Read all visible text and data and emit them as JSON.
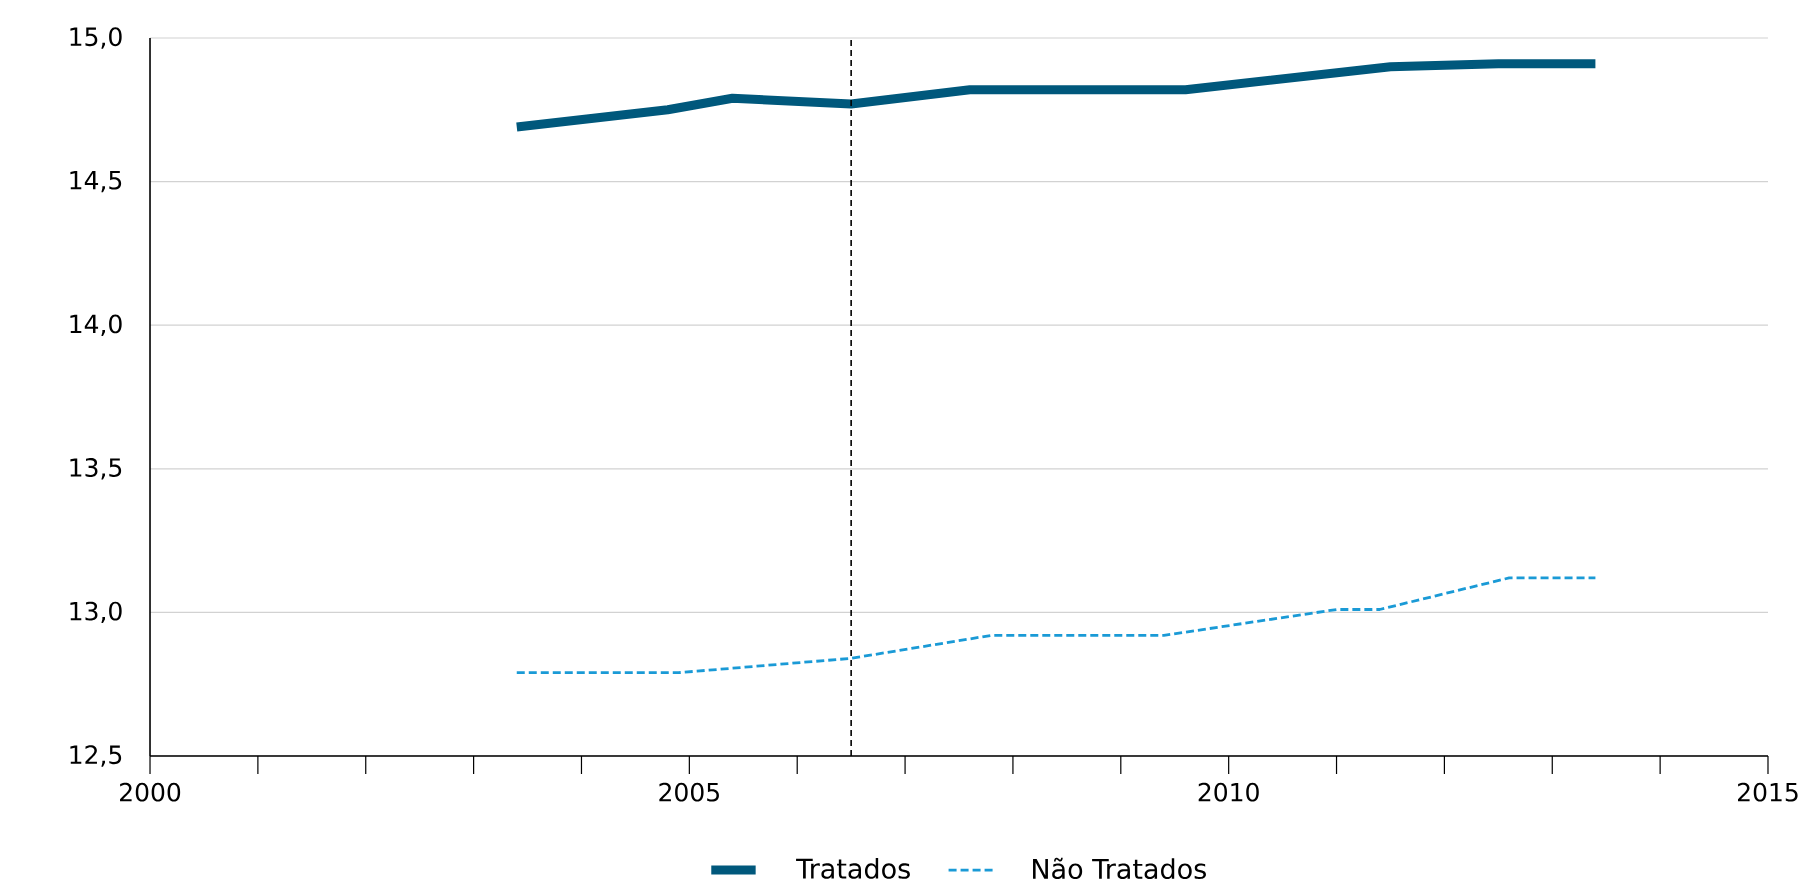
{
  "chart_data": {
    "type": "line",
    "xlim": [
      2000,
      2015
    ],
    "ylim": [
      12.5,
      15
    ],
    "xticks": [
      2000,
      {
        "value": 2001,
        "label": null
      },
      {
        "value": 2002,
        "label": null
      },
      {
        "value": 2003,
        "label": null
      },
      {
        "value": 2004,
        "label": null
      },
      2005,
      {
        "value": 2006,
        "label": null
      },
      {
        "value": 2007,
        "label": null
      },
      {
        "value": 2008,
        "label": null
      },
      {
        "value": 2009,
        "label": null
      },
      2010,
      {
        "value": 2011,
        "label": null
      },
      {
        "value": 2012,
        "label": null
      },
      {
        "value": 2013,
        "label": null
      },
      {
        "value": 2014,
        "label": null
      },
      2015
    ],
    "yticks": [
      {
        "value": 12.5,
        "label": "12,5"
      },
      {
        "value": 13,
        "label": "13,0"
      },
      {
        "value": 13.5,
        "label": "13,5"
      },
      {
        "value": 14,
        "label": "14,0"
      },
      {
        "value": 14.5,
        "label": "14,5"
      },
      {
        "value": 15,
        "label": "15,0"
      }
    ],
    "grid": "y",
    "legend": "bottom",
    "series": [
      {
        "name": "Tratados",
        "color": "#00587c",
        "line_style": "solid",
        "x": [
          2003.4,
          2004.8,
          2005.4,
          2006.5,
          2007.6,
          2009.6,
          2011.5,
          2012.5,
          2013.4
        ],
        "values": [
          14.69,
          14.75,
          14.79,
          14.77,
          14.82,
          14.82,
          14.9,
          14.91,
          14.91
        ]
      },
      {
        "name": "Não Tratados",
        "color": "#1a9ad6",
        "line_style": "dashed",
        "x": [
          2003.4,
          2004.9,
          2006.5,
          2007.8,
          2009.4,
          2011.0,
          2011.4,
          2012.6,
          2013.4
        ],
        "values": [
          12.79,
          12.79,
          12.84,
          12.92,
          12.92,
          13.01,
          13.01,
          13.12,
          13.12
        ]
      }
    ],
    "ref_lines": [
      {
        "axis": "x",
        "value": 2006.5,
        "color": "#000000",
        "line_style": "dashed"
      }
    ]
  }
}
